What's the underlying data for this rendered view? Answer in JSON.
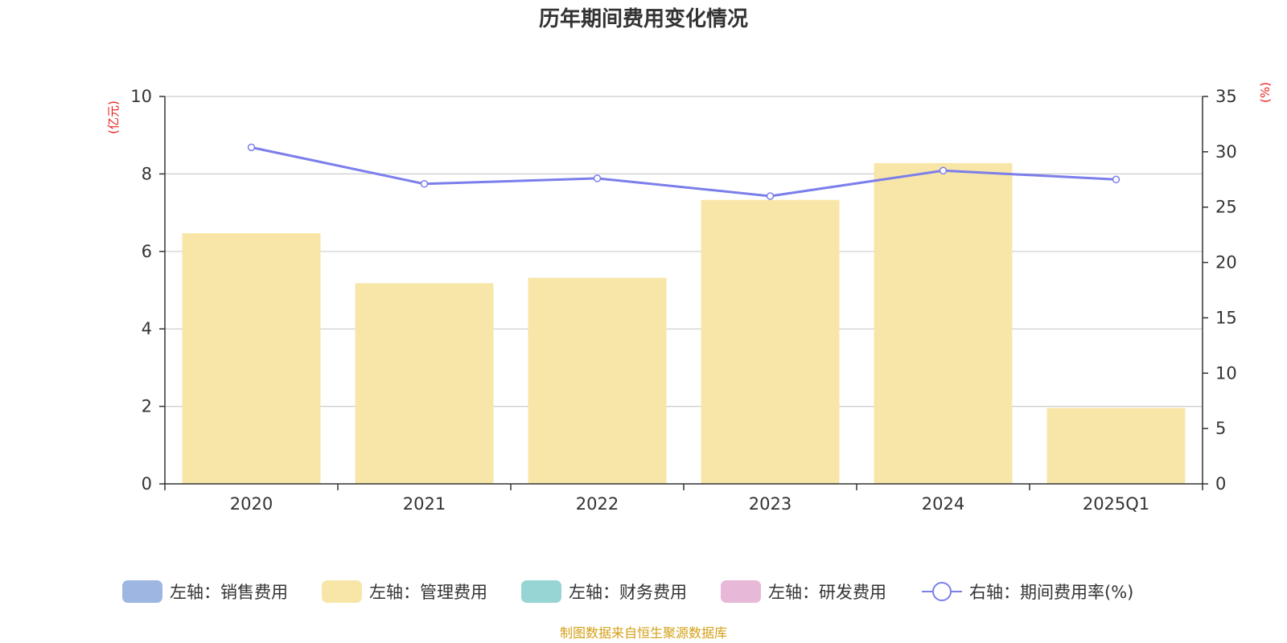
{
  "chart_data": {
    "type": "bar",
    "title": "历年期间费用变化情况",
    "categories": [
      "2020",
      "2021",
      "2022",
      "2023",
      "2024",
      "2025Q1"
    ],
    "left_axis": {
      "unit_label": "(亿元)",
      "ylim": [
        0,
        10
      ],
      "ticks": [
        "0",
        "2",
        "4",
        "6",
        "8",
        "10"
      ]
    },
    "right_axis": {
      "unit_label": "(%)",
      "ylim": [
        0,
        35
      ],
      "ticks": [
        "0",
        "5",
        "10",
        "15",
        "20",
        "25",
        "30",
        "35"
      ]
    },
    "series": [
      {
        "name": "左轴：销售费用",
        "type": "bar",
        "axis": "left",
        "color": "#9DB7E2",
        "values": [
          null,
          null,
          null,
          null,
          null,
          null
        ]
      },
      {
        "name": "左轴：管理费用",
        "type": "bar",
        "axis": "left",
        "color": "#F8E6A8",
        "values": [
          6.47,
          5.18,
          5.32,
          7.33,
          8.28,
          1.96
        ]
      },
      {
        "name": "左轴：财务费用",
        "type": "bar",
        "axis": "left",
        "color": "#97D4D4",
        "values": [
          null,
          null,
          null,
          null,
          null,
          null
        ]
      },
      {
        "name": "左轴：研发费用",
        "type": "bar",
        "axis": "left",
        "color": "#E8B8D8",
        "values": [
          null,
          null,
          null,
          null,
          null,
          null
        ]
      },
      {
        "name": "右轴：期间费用率(%)",
        "type": "line",
        "axis": "right",
        "color": "#7B7EEB",
        "values": [
          30.4,
          27.1,
          27.6,
          26.0,
          28.3,
          27.5
        ]
      }
    ],
    "unit_color": "#E8201E",
    "grid": true,
    "legend_position": "bottom"
  },
  "source_text": "制图数据来自恒生聚源数据库",
  "source_color": "#D4A017"
}
